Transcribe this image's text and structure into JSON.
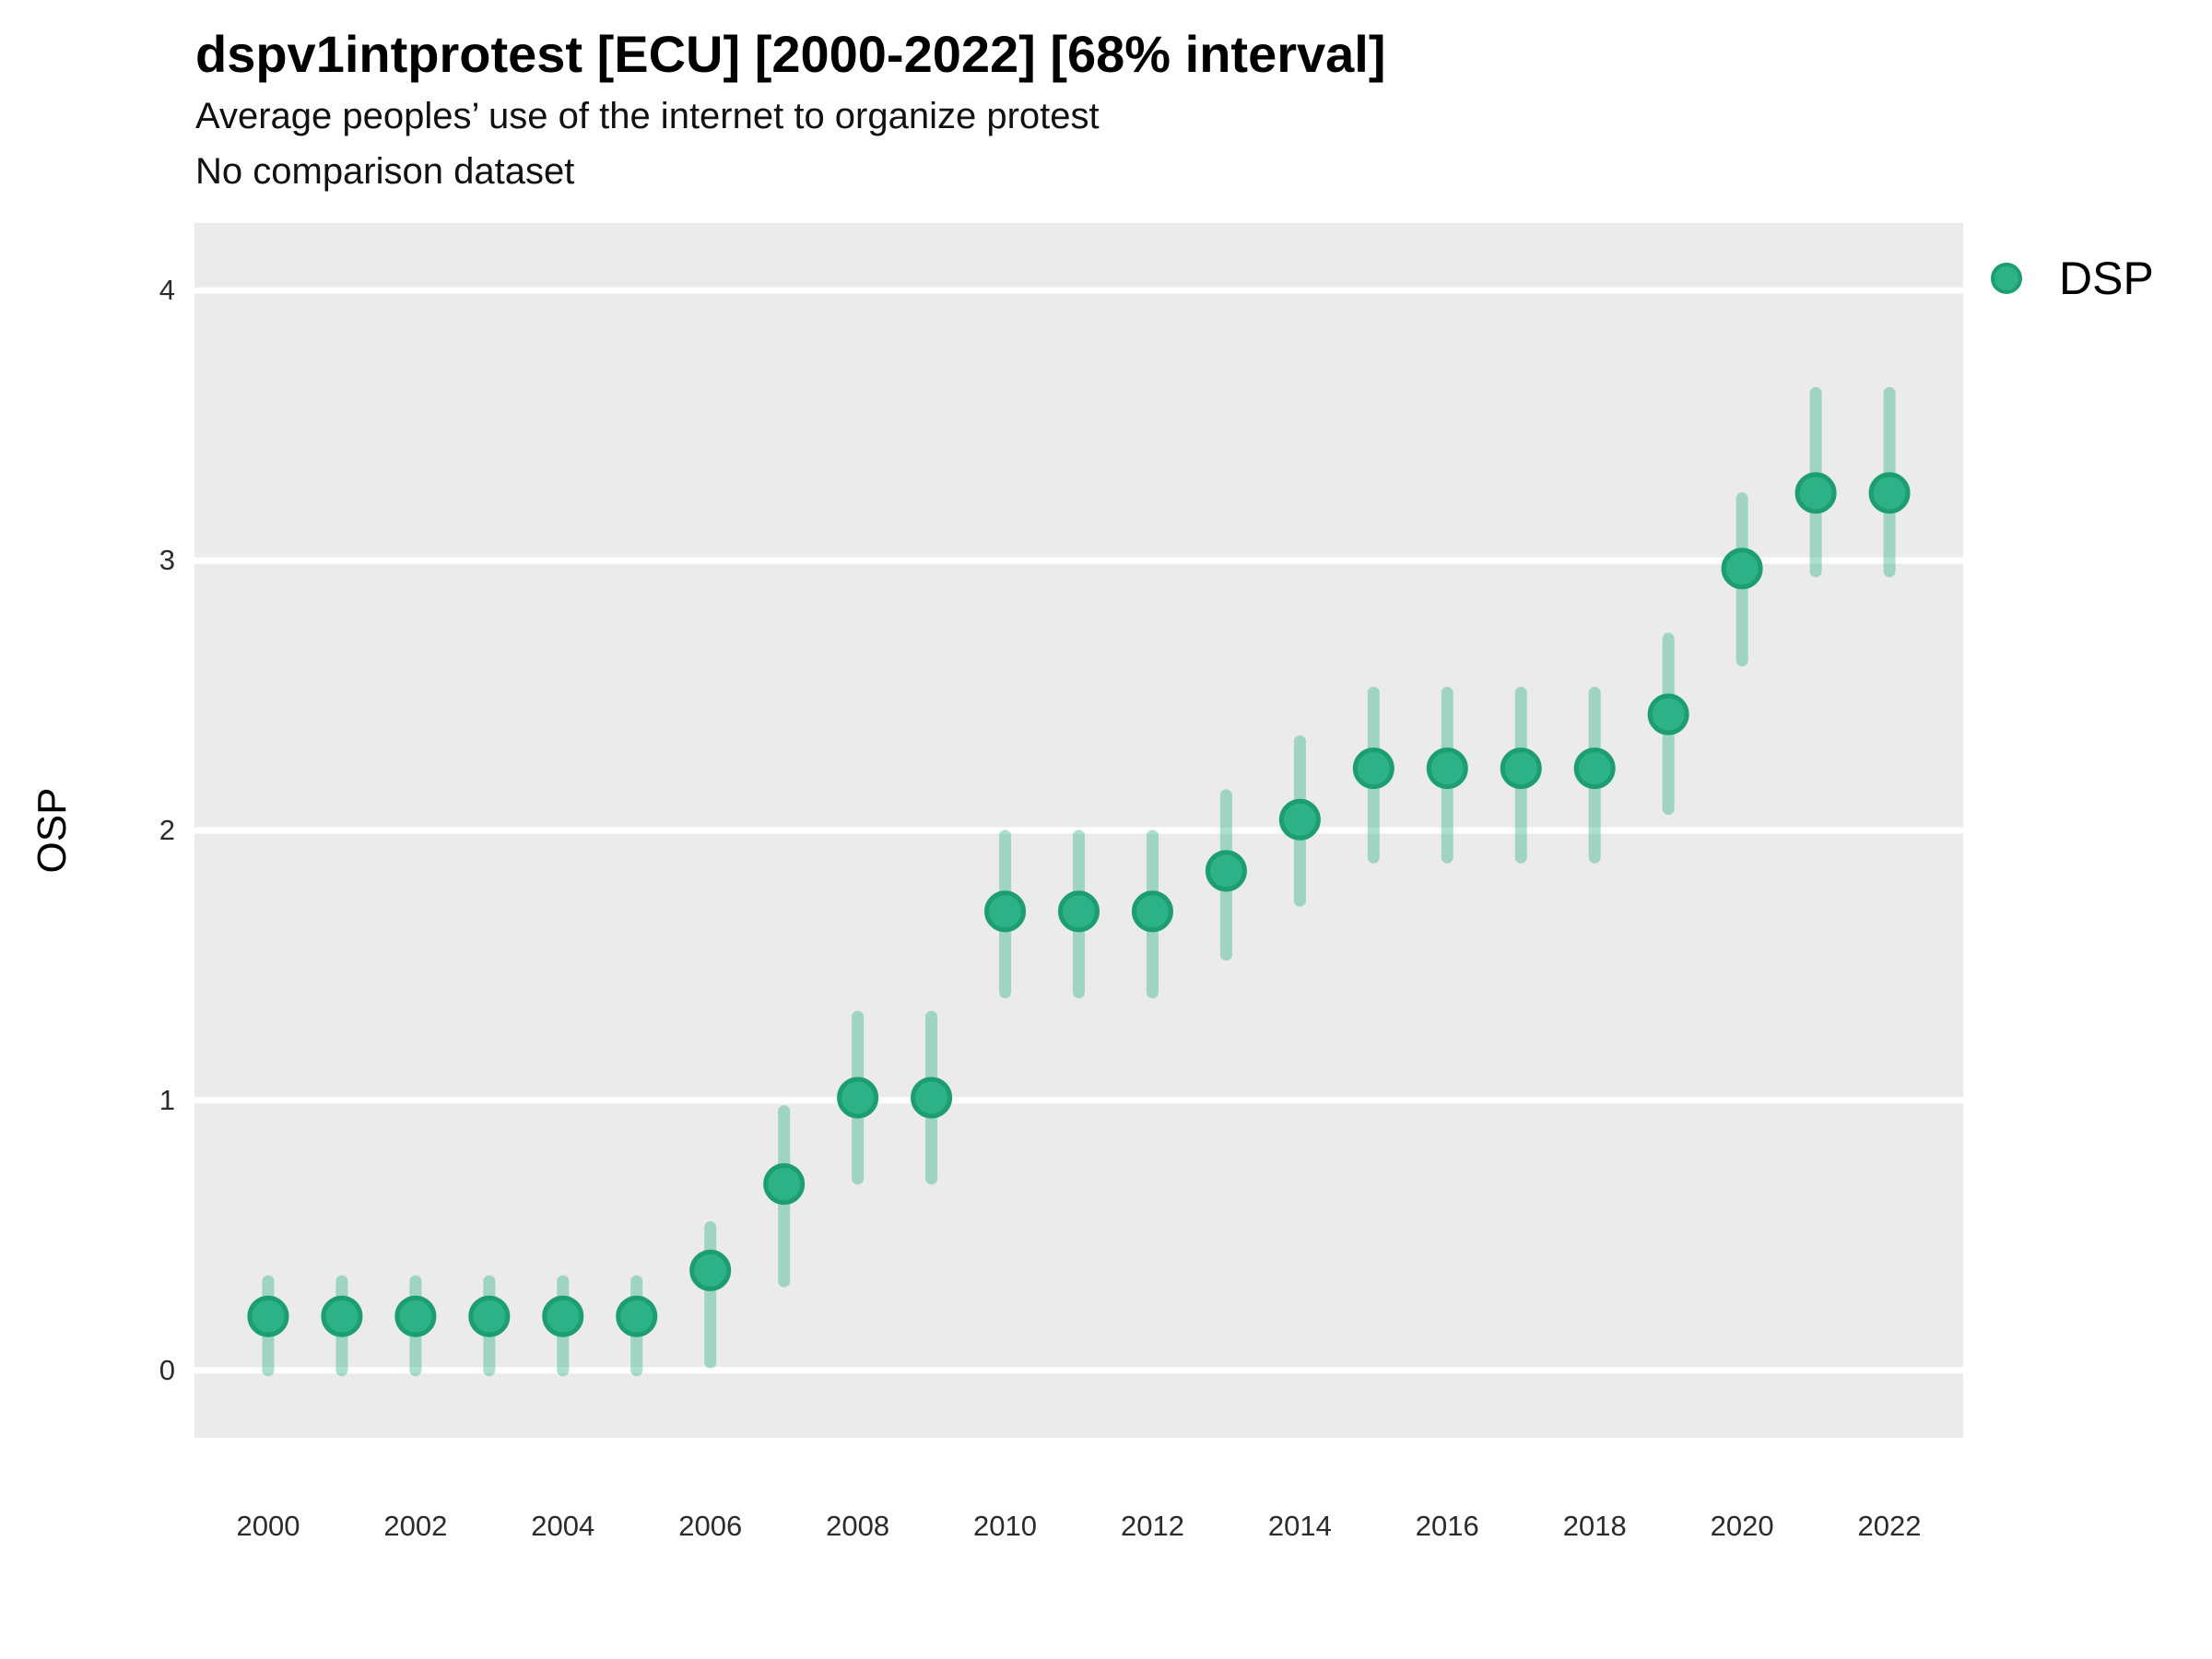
{
  "header": {
    "title": "dspv1intprotest [ECU] [2000-2022] [68% interval]",
    "subtitle": "Average peoples’ use of the internet to organize protest",
    "subtitle2": "No comparison dataset"
  },
  "legend": {
    "items": [
      {
        "label": "DSP",
        "color": "#2cb286"
      }
    ]
  },
  "axes": {
    "y_label": "OSP",
    "y_ticks": [
      0,
      1,
      2,
      3,
      4
    ],
    "x_ticks": [
      2000,
      2002,
      2004,
      2006,
      2008,
      2010,
      2012,
      2014,
      2016,
      2018,
      2020,
      2022
    ]
  },
  "colors": {
    "panel_background": "#ebebeb",
    "gridline": "#ffffff",
    "point_fill": "#2cb286",
    "point_stroke": "#1d9e70",
    "interval_bar": "rgba(44,178,133,0.40)",
    "text": "#000000"
  },
  "chart_data": {
    "type": "scatter",
    "subtype": "pointrange",
    "title": "dspv1intprotest [ECU] [2000-2022] [68% interval]",
    "subtitle": "Average peoples’ use of the internet to organize protest",
    "comparison": "No comparison dataset",
    "xlabel": "",
    "ylabel": "OSP",
    "xlim": [
      1999,
      2023
    ],
    "ylim": [
      -0.25,
      4.25
    ],
    "grid": "horizontal-only",
    "legend_position": "right-top",
    "interval_level": 68,
    "series": [
      {
        "name": "DSP",
        "color": "#2cb286",
        "points": [
          {
            "year": 2000,
            "value": 0.2,
            "low": 0.0,
            "high": 0.33
          },
          {
            "year": 2001,
            "value": 0.2,
            "low": 0.0,
            "high": 0.33
          },
          {
            "year": 2002,
            "value": 0.2,
            "low": 0.0,
            "high": 0.33
          },
          {
            "year": 2003,
            "value": 0.2,
            "low": 0.0,
            "high": 0.33
          },
          {
            "year": 2004,
            "value": 0.2,
            "low": 0.0,
            "high": 0.33
          },
          {
            "year": 2005,
            "value": 0.2,
            "low": 0.0,
            "high": 0.33
          },
          {
            "year": 2006,
            "value": 0.37,
            "low": 0.03,
            "high": 0.53
          },
          {
            "year": 2007,
            "value": 0.69,
            "low": 0.33,
            "high": 0.96
          },
          {
            "year": 2008,
            "value": 1.01,
            "low": 0.71,
            "high": 1.31
          },
          {
            "year": 2009,
            "value": 1.01,
            "low": 0.71,
            "high": 1.31
          },
          {
            "year": 2010,
            "value": 1.7,
            "low": 1.4,
            "high": 1.98
          },
          {
            "year": 2011,
            "value": 1.7,
            "low": 1.4,
            "high": 1.98
          },
          {
            "year": 2012,
            "value": 1.7,
            "low": 1.4,
            "high": 1.98
          },
          {
            "year": 2013,
            "value": 1.85,
            "low": 1.54,
            "high": 2.13
          },
          {
            "year": 2014,
            "value": 2.04,
            "low": 1.74,
            "high": 2.33
          },
          {
            "year": 2015,
            "value": 2.23,
            "low": 1.9,
            "high": 2.51
          },
          {
            "year": 2016,
            "value": 2.23,
            "low": 1.9,
            "high": 2.51
          },
          {
            "year": 2017,
            "value": 2.23,
            "low": 1.9,
            "high": 2.51
          },
          {
            "year": 2018,
            "value": 2.23,
            "low": 1.9,
            "high": 2.51
          },
          {
            "year": 2019,
            "value": 2.43,
            "low": 2.08,
            "high": 2.71
          },
          {
            "year": 2020,
            "value": 2.97,
            "low": 2.63,
            "high": 3.23
          },
          {
            "year": 2021,
            "value": 3.25,
            "low": 2.96,
            "high": 3.62
          },
          {
            "year": 2022,
            "value": 3.25,
            "low": 2.96,
            "high": 3.62
          }
        ]
      }
    ]
  }
}
